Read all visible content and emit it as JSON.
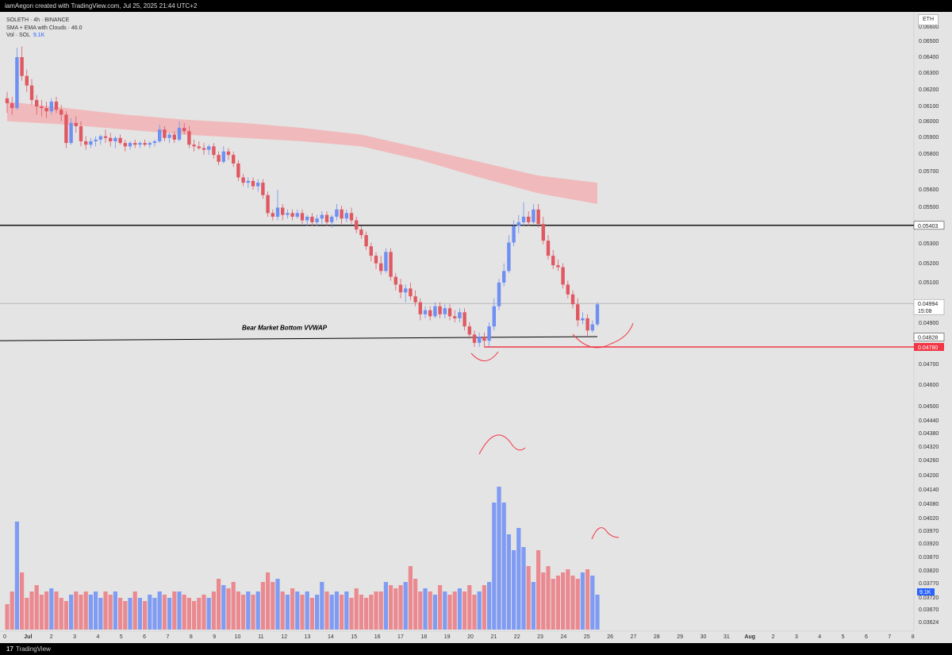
{
  "header": {
    "attribution": "iamAegon created with TradingView.com, Jul 25, 2025 21:44 UTC+2"
  },
  "legend": {
    "line1": "SOLETH · 4h · BINANCE",
    "line2": "SMA + EMA with Clouds · 46.0",
    "line3_label": "Vol · SOL",
    "line3_value": "9.1K"
  },
  "symbol_badge": "ETH",
  "footer": {
    "brand": "TradingView",
    "logo_glyph": "17"
  },
  "colors": {
    "up": "#6f8ff2",
    "down": "#e05861",
    "up_vol": "#7f9bf3",
    "down_vol": "#ea8a90",
    "cloud": "#f2b3b5",
    "support_red": "#f23645"
  },
  "chart_data": {
    "type": "candlestick",
    "symbol": "SOLETH",
    "timeframe": "4h",
    "exchange": "BINANCE",
    "scale": "log",
    "ylim": [
      0.0362,
      0.0665
    ],
    "y_ticks": [
      "0.06600",
      "0.06500",
      "0.06400",
      "0.06300",
      "0.06200",
      "0.06100",
      "0.06000",
      "0.05900",
      "0.05800",
      "0.05700",
      "0.05600",
      "0.05500",
      "0.05300",
      "0.05200",
      "0.05100",
      "0.04900",
      "0.04700",
      "0.04600",
      "0.04500",
      "0.04440",
      "0.04380",
      "0.04320",
      "0.04260",
      "0.04200",
      "0.04140",
      "0.04080",
      "0.04020",
      "0.03970",
      "0.03920",
      "0.03870",
      "0.03820",
      "0.03770",
      "0.03720",
      "0.03670",
      "0.03624"
    ],
    "x_ticks": [
      "0",
      "Jul",
      "2",
      "3",
      "4",
      "5",
      "6",
      "7",
      "8",
      "9",
      "10",
      "11",
      "12",
      "13",
      "14",
      "15",
      "16",
      "17",
      "18",
      "19",
      "20",
      "21",
      "22",
      "23",
      "24",
      "25",
      "26",
      "27",
      "28",
      "29",
      "30",
      "31",
      "Aug",
      "2",
      "3",
      "4",
      "5",
      "6",
      "7",
      "8"
    ],
    "price_labels": [
      {
        "text": "0.05403",
        "value": 0.05403,
        "style": "line"
      },
      {
        "text": "0.04994",
        "value": 0.04994,
        "style": "last",
        "countdown": "15:08"
      },
      {
        "text": "0.04828",
        "value": 0.04828,
        "style": "line"
      },
      {
        "text": "0.04780",
        "value": 0.0478,
        "style": "red"
      }
    ],
    "volume_badge": "9.1K",
    "annotations": [
      {
        "type": "hline",
        "value": 0.05403,
        "color": "#000000"
      },
      {
        "type": "trendline",
        "from": {
          "x": "Jul 1",
          "y": 0.0481
        },
        "to": {
          "x": "Jul 25 20:00",
          "y": 0.0483
        },
        "color": "#000000",
        "label": "Bear Market Bottom VVWAP"
      },
      {
        "type": "hline",
        "value": 0.0478,
        "color": "#f23645"
      },
      {
        "type": "hline",
        "value": 0.04994,
        "color": "#9e9e9e",
        "note": "last price"
      }
    ],
    "cloud": {
      "name": "SMA + EMA with Clouds",
      "upper": [
        0.0612,
        0.0608,
        0.0604,
        0.0601,
        0.0599,
        0.0596,
        0.0592,
        0.0584,
        0.0576,
        0.0568,
        0.0564
      ],
      "lower": [
        0.06,
        0.0598,
        0.0595,
        0.0592,
        0.059,
        0.0588,
        0.0585,
        0.0577,
        0.0567,
        0.0558,
        0.0552
      ],
      "x_range": [
        "Jul 1",
        "Jul 25 20:00"
      ]
    },
    "candles_ohlc": [
      [
        0.0614,
        0.0618,
        0.0605,
        0.0611
      ],
      [
        0.0611,
        0.0615,
        0.0604,
        0.0608
      ],
      [
        0.0608,
        0.0646,
        0.0607,
        0.064
      ],
      [
        0.064,
        0.0647,
        0.0625,
        0.0628
      ],
      [
        0.0628,
        0.0632,
        0.0618,
        0.0622
      ],
      [
        0.0622,
        0.0626,
        0.061,
        0.0613
      ],
      [
        0.0613,
        0.0616,
        0.0604,
        0.0609
      ],
      [
        0.0609,
        0.0613,
        0.0603,
        0.0608
      ],
      [
        0.0608,
        0.0612,
        0.0602,
        0.0606
      ],
      [
        0.0606,
        0.0614,
        0.0604,
        0.0612
      ],
      [
        0.0612,
        0.0615,
        0.0605,
        0.0607
      ],
      [
        0.0607,
        0.061,
        0.06,
        0.0604
      ],
      [
        0.0604,
        0.0606,
        0.0584,
        0.0587
      ],
      [
        0.0587,
        0.0602,
        0.0586,
        0.0599
      ],
      [
        0.0599,
        0.0603,
        0.0593,
        0.0597
      ],
      [
        0.0597,
        0.06,
        0.0585,
        0.0588
      ],
      [
        0.0588,
        0.0591,
        0.0583,
        0.0586
      ],
      [
        0.0586,
        0.059,
        0.0584,
        0.0588
      ],
      [
        0.0588,
        0.0591,
        0.0585,
        0.0589
      ],
      [
        0.0589,
        0.0592,
        0.0586,
        0.0591
      ],
      [
        0.0591,
        0.0595,
        0.0587,
        0.059
      ],
      [
        0.059,
        0.0593,
        0.0585,
        0.0588
      ],
      [
        0.0588,
        0.0591,
        0.0584,
        0.059
      ],
      [
        0.059,
        0.0592,
        0.0586,
        0.0587
      ],
      [
        0.0587,
        0.0589,
        0.0582,
        0.0585
      ],
      [
        0.0585,
        0.0588,
        0.0583,
        0.0587
      ],
      [
        0.0587,
        0.0589,
        0.0584,
        0.0586
      ],
      [
        0.0586,
        0.0588,
        0.0584,
        0.0587
      ],
      [
        0.0587,
        0.0589,
        0.0585,
        0.0586
      ],
      [
        0.0586,
        0.0588,
        0.0584,
        0.0587
      ],
      [
        0.0587,
        0.0589,
        0.0585,
        0.0588
      ],
      [
        0.0588,
        0.0598,
        0.0587,
        0.0595
      ],
      [
        0.0595,
        0.0597,
        0.0588,
        0.059
      ],
      [
        0.059,
        0.0593,
        0.0587,
        0.0592
      ],
      [
        0.0592,
        0.0594,
        0.0587,
        0.0589
      ],
      [
        0.0589,
        0.06,
        0.0588,
        0.0596
      ],
      [
        0.0596,
        0.0599,
        0.0592,
        0.0594
      ],
      [
        0.0594,
        0.0597,
        0.0584,
        0.0586
      ],
      [
        0.0586,
        0.0589,
        0.0582,
        0.0585
      ],
      [
        0.0585,
        0.0588,
        0.0583,
        0.0584
      ],
      [
        0.0584,
        0.0587,
        0.058,
        0.0583
      ],
      [
        0.0583,
        0.0586,
        0.058,
        0.0585
      ],
      [
        0.0585,
        0.0587,
        0.0578,
        0.058
      ],
      [
        0.058,
        0.0582,
        0.0574,
        0.0576
      ],
      [
        0.0576,
        0.0585,
        0.0575,
        0.0582
      ],
      [
        0.0582,
        0.0584,
        0.0577,
        0.058
      ],
      [
        0.058,
        0.0582,
        0.0573,
        0.0575
      ],
      [
        0.0575,
        0.0577,
        0.0565,
        0.0567
      ],
      [
        0.0567,
        0.0569,
        0.0562,
        0.0564
      ],
      [
        0.0564,
        0.0567,
        0.0561,
        0.0565
      ],
      [
        0.0565,
        0.0567,
        0.056,
        0.0562
      ],
      [
        0.0562,
        0.0566,
        0.0559,
        0.0564
      ],
      [
        0.0564,
        0.0566,
        0.0555,
        0.0557
      ],
      [
        0.0557,
        0.0559,
        0.0545,
        0.0547
      ],
      [
        0.0547,
        0.0549,
        0.0543,
        0.0545
      ],
      [
        0.0545,
        0.056,
        0.0543,
        0.055
      ],
      [
        0.055,
        0.0552,
        0.0543,
        0.0546
      ],
      [
        0.0546,
        0.0549,
        0.0544,
        0.0547
      ],
      [
        0.0547,
        0.0549,
        0.0543,
        0.0545
      ],
      [
        0.0545,
        0.0549,
        0.0544,
        0.0547
      ],
      [
        0.0547,
        0.0549,
        0.0541,
        0.0543
      ],
      [
        0.0543,
        0.0546,
        0.054,
        0.0545
      ],
      [
        0.0545,
        0.0547,
        0.054,
        0.0542
      ],
      [
        0.0542,
        0.0546,
        0.054,
        0.0544
      ],
      [
        0.0544,
        0.0548,
        0.0541,
        0.0546
      ],
      [
        0.0546,
        0.0548,
        0.054,
        0.0542
      ],
      [
        0.0542,
        0.0546,
        0.0539,
        0.0545
      ],
      [
        0.0545,
        0.0552,
        0.0543,
        0.0549
      ],
      [
        0.0549,
        0.0551,
        0.0541,
        0.0544
      ],
      [
        0.0544,
        0.0549,
        0.0542,
        0.0547
      ],
      [
        0.0547,
        0.055,
        0.0541,
        0.0543
      ],
      [
        0.0543,
        0.0545,
        0.0536,
        0.0538
      ],
      [
        0.0538,
        0.054,
        0.0533,
        0.0535
      ],
      [
        0.0535,
        0.0537,
        0.0527,
        0.0529
      ],
      [
        0.0529,
        0.0531,
        0.0521,
        0.0524
      ],
      [
        0.0524,
        0.0526,
        0.0517,
        0.052
      ],
      [
        0.052,
        0.0524,
        0.0514,
        0.0516
      ],
      [
        0.0516,
        0.0528,
        0.0515,
        0.0526
      ],
      [
        0.0526,
        0.0528,
        0.0511,
        0.0513
      ],
      [
        0.0513,
        0.0515,
        0.0506,
        0.0509
      ],
      [
        0.0509,
        0.0512,
        0.0502,
        0.0505
      ],
      [
        0.0505,
        0.0509,
        0.05,
        0.0507
      ],
      [
        0.0507,
        0.051,
        0.0501,
        0.0503
      ],
      [
        0.0503,
        0.0506,
        0.0498,
        0.05
      ],
      [
        0.05,
        0.0502,
        0.0491,
        0.0494
      ],
      [
        0.0494,
        0.0498,
        0.0492,
        0.0496
      ],
      [
        0.0496,
        0.0498,
        0.0491,
        0.0493
      ],
      [
        0.0493,
        0.05,
        0.0492,
        0.0498
      ],
      [
        0.0498,
        0.05,
        0.0492,
        0.0494
      ],
      [
        0.0494,
        0.0499,
        0.0492,
        0.0497
      ],
      [
        0.0497,
        0.0499,
        0.0491,
        0.0493
      ],
      [
        0.0493,
        0.0496,
        0.049,
        0.0492
      ],
      [
        0.0492,
        0.0497,
        0.049,
        0.0495
      ],
      [
        0.0495,
        0.0497,
        0.0486,
        0.0488
      ],
      [
        0.0488,
        0.049,
        0.0482,
        0.0484
      ],
      [
        0.0484,
        0.0486,
        0.0478,
        0.048
      ],
      [
        0.048,
        0.0485,
        0.0478,
        0.0483
      ],
      [
        0.0483,
        0.0485,
        0.0478,
        0.0481
      ],
      [
        0.0481,
        0.049,
        0.0478,
        0.0488
      ],
      [
        0.0488,
        0.0502,
        0.0486,
        0.0498
      ],
      [
        0.0498,
        0.0512,
        0.0496,
        0.051
      ],
      [
        0.051,
        0.052,
        0.0508,
        0.0516
      ],
      [
        0.0516,
        0.0535,
        0.0515,
        0.0531
      ],
      [
        0.0531,
        0.0543,
        0.0529,
        0.054
      ],
      [
        0.054,
        0.0546,
        0.0536,
        0.0542
      ],
      [
        0.0542,
        0.0553,
        0.054,
        0.0545
      ],
      [
        0.0545,
        0.0548,
        0.054,
        0.0542
      ],
      [
        0.0542,
        0.0552,
        0.0541,
        0.0549
      ],
      [
        0.0549,
        0.0552,
        0.0539,
        0.0541
      ],
      [
        0.0541,
        0.0545,
        0.053,
        0.0532
      ],
      [
        0.0532,
        0.0535,
        0.0522,
        0.0524
      ],
      [
        0.0524,
        0.0527,
        0.0517,
        0.0519
      ],
      [
        0.0519,
        0.0522,
        0.0516,
        0.0518
      ],
      [
        0.0518,
        0.052,
        0.0507,
        0.0509
      ],
      [
        0.0509,
        0.0511,
        0.0502,
        0.0504
      ],
      [
        0.0504,
        0.0506,
        0.0497,
        0.0499
      ],
      [
        0.0499,
        0.0502,
        0.0488,
        0.0491
      ],
      [
        0.0491,
        0.0495,
        0.0489,
        0.0492
      ],
      [
        0.0492,
        0.0494,
        0.0483,
        0.0486
      ],
      [
        0.0486,
        0.0491,
        0.0485,
        0.0489
      ],
      [
        0.0489,
        0.05,
        0.0488,
        0.0499
      ]
    ],
    "volume": [
      8,
      12,
      34,
      18,
      10,
      12,
      14,
      11,
      12,
      13,
      12,
      10,
      9,
      11,
      12,
      11,
      12,
      11,
      12,
      10,
      12,
      11,
      12,
      10,
      9,
      10,
      12,
      10,
      9,
      11,
      10,
      12,
      11,
      10,
      12,
      12,
      11,
      10,
      9,
      10,
      11,
      10,
      12,
      16,
      14,
      13,
      15,
      12,
      11,
      12,
      11,
      12,
      15,
      18,
      15,
      16,
      12,
      11,
      13,
      12,
      11,
      12,
      10,
      11,
      15,
      12,
      11,
      12,
      11,
      12,
      10,
      13,
      11,
      10,
      11,
      12,
      12,
      15,
      14,
      13,
      14,
      15,
      20,
      16,
      12,
      13,
      12,
      11,
      14,
      12,
      11,
      12,
      13,
      12,
      14,
      11,
      12,
      14,
      15,
      40,
      45,
      40,
      30,
      25,
      32,
      26,
      20,
      15,
      25,
      18,
      20,
      16,
      17,
      18,
      19,
      17,
      16,
      18,
      19,
      17,
      11
    ]
  }
}
